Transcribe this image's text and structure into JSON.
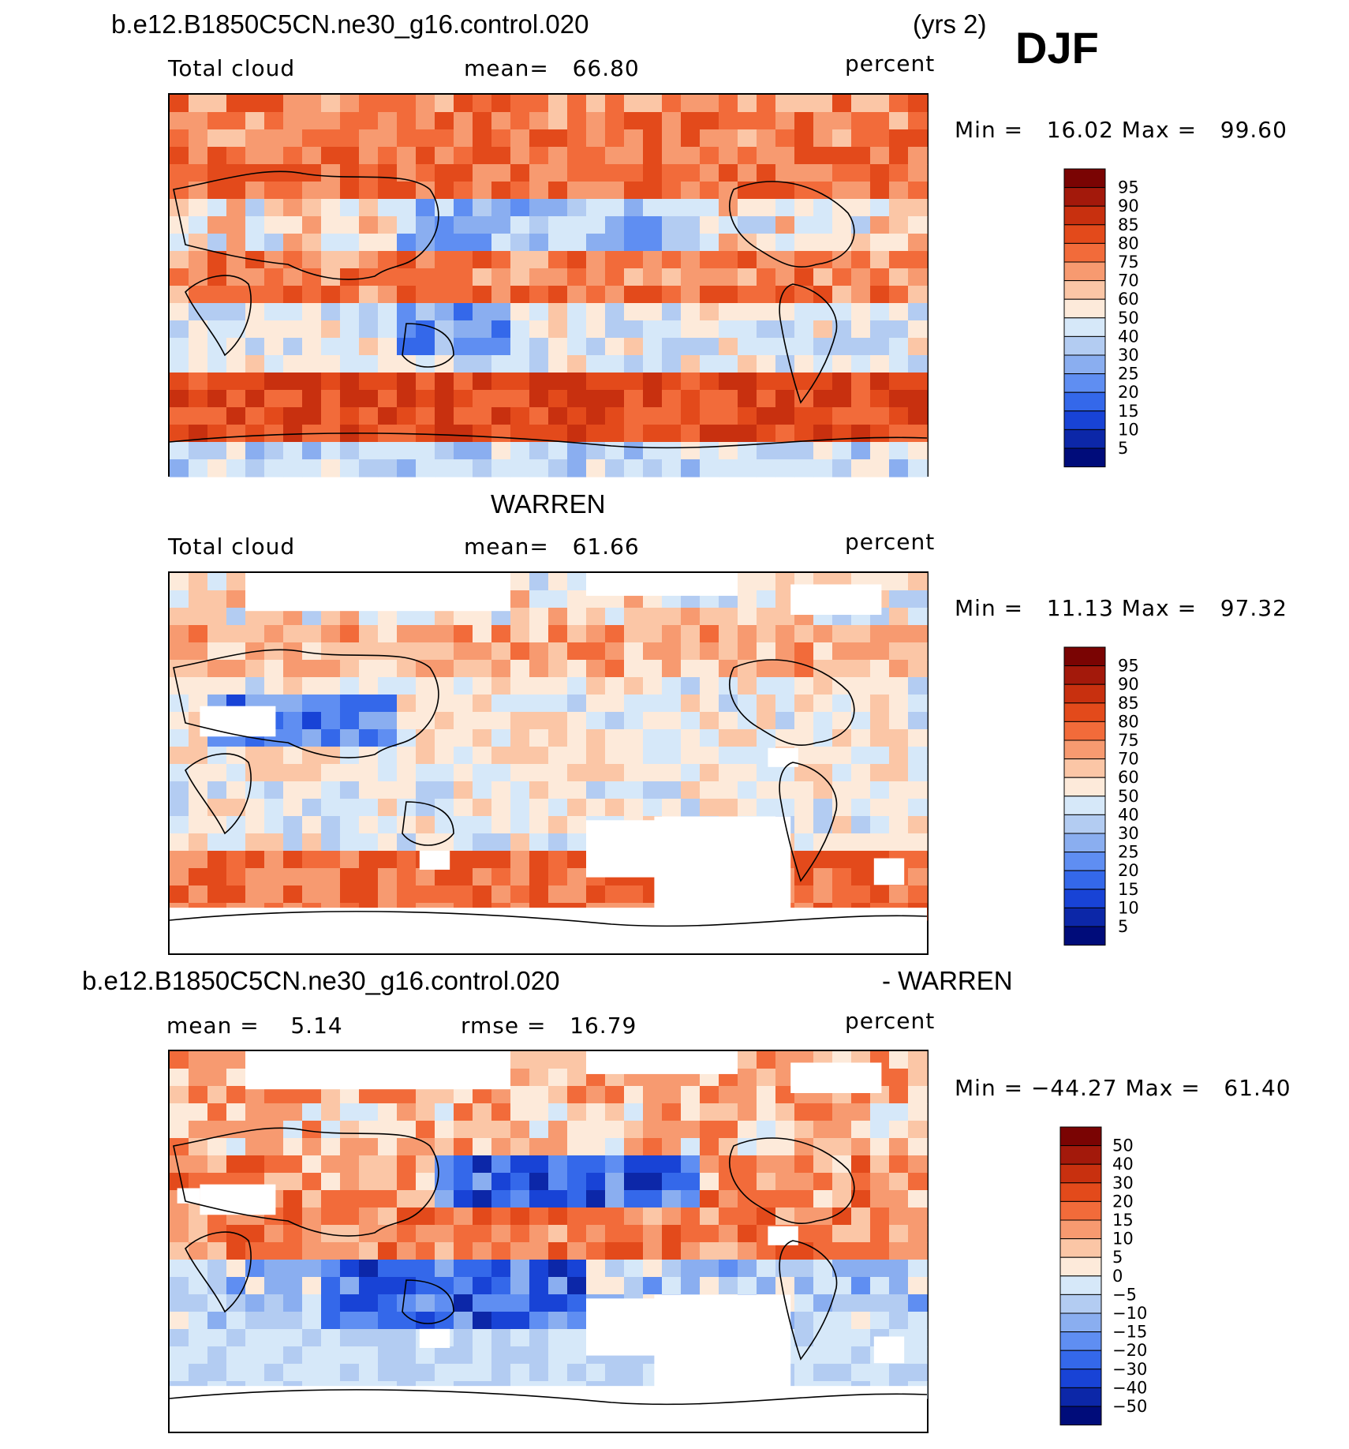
{
  "header": {
    "case_name": "b.e12.B1850C5CN.ne30_g16.control.020",
    "years": "(yrs 2)",
    "season": "DJF"
  },
  "panels": [
    {
      "id": "model",
      "title": "",
      "field": "Total cloud",
      "stat_text": "mean=   66.80",
      "units": "percent",
      "minmax": "Min =   16.02 Max =   99.60",
      "colorbar_labels": [
        "95",
        "90",
        "85",
        "80",
        "75",
        "70",
        "60",
        "50",
        "40",
        "30",
        "25",
        "20",
        "15",
        "10",
        "5"
      ]
    },
    {
      "id": "obs",
      "title": "WARREN",
      "field": "Total cloud",
      "stat_text": "mean=   61.66",
      "units": "percent",
      "minmax": "Min =   11.13 Max =   97.32",
      "colorbar_labels": [
        "95",
        "90",
        "85",
        "80",
        "75",
        "70",
        "60",
        "50",
        "40",
        "30",
        "25",
        "20",
        "15",
        "10",
        "5"
      ]
    },
    {
      "id": "diff",
      "title_left": "b.e12.B1850C5CN.ne30_g16.control.020",
      "title_right": "- WARREN",
      "stat_left": "mean =    5.14",
      "stat_mid": "rmse =   16.79",
      "units": "percent",
      "minmax": "Min = −44.27 Max =   61.40",
      "colorbar_labels": [
        "50",
        "40",
        "30",
        "20",
        "15",
        "10",
        "5",
        "0",
        "−5",
        "−10",
        "−15",
        "−20",
        "−30",
        "−40",
        "−50"
      ]
    }
  ],
  "chart_data": {
    "type": "heatmap",
    "title": "b.e12.B1850C5CN.ne30_g16.control.020 (yrs 2) DJF Total cloud",
    "colors": {
      "palette": [
        "#7a0403",
        "#a3190b",
        "#c8300f",
        "#e34a1b",
        "#f26b3a",
        "#f79a70",
        "#fbc6a6",
        "#fdeada",
        "#d6e8f9",
        "#b3ccf2",
        "#8aaef0",
        "#5f8ef2",
        "#3468ea",
        "#1843d6",
        "#0c27a8",
        "#000c7a"
      ],
      "missing": "#ffffff",
      "coast": "#000000"
    },
    "model_levels": [
      5,
      10,
      15,
      20,
      25,
      30,
      40,
      50,
      60,
      70,
      75,
      80,
      85,
      90,
      95
    ],
    "diff_levels": [
      -50,
      -40,
      -30,
      -20,
      -15,
      -10,
      -5,
      0,
      5,
      10,
      15,
      20,
      30,
      40,
      50
    ],
    "model": {
      "mean": 66.8,
      "min": 16.02,
      "max": 99.6,
      "units": "percent"
    },
    "warren": {
      "mean": 61.66,
      "min": 11.13,
      "max": 97.32,
      "units": "percent"
    },
    "difference": {
      "mean": 5.14,
      "rmse": 16.79,
      "min": -44.27,
      "max": 61.4,
      "units": "percent"
    }
  }
}
